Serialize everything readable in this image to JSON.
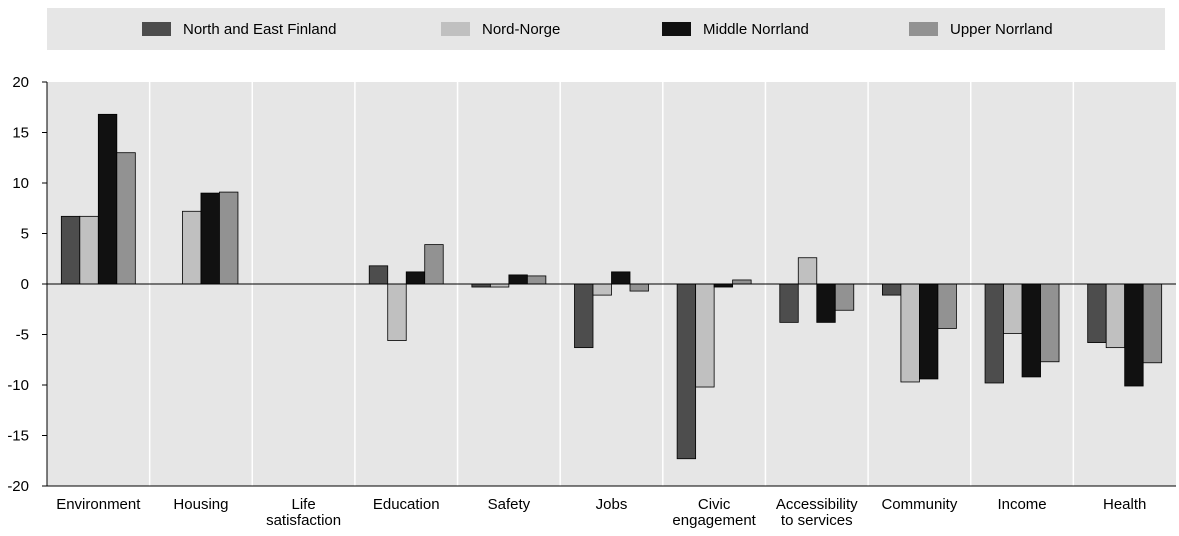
{
  "chart_data": {
    "type": "bar",
    "title": "",
    "xlabel": "",
    "ylabel": "",
    "ylim": [
      -20,
      20
    ],
    "yticks": [
      20,
      15,
      10,
      5,
      0,
      -5,
      -10,
      -15,
      -20
    ],
    "grid": true,
    "legend_position": "top",
    "categories": [
      [
        "Environment"
      ],
      [
        "Housing"
      ],
      [
        "Life",
        "satisfaction"
      ],
      [
        "Education"
      ],
      [
        "Safety"
      ],
      [
        "Jobs"
      ],
      [
        "Civic",
        "engagement"
      ],
      [
        "Accessibility",
        "to services"
      ],
      [
        "Community"
      ],
      [
        "Income"
      ],
      [
        "Health"
      ]
    ],
    "series": [
      {
        "name": "North and East Finland",
        "color": "#4d4d4d",
        "values": [
          6.7,
          null,
          null,
          1.8,
          -0.3,
          -6.3,
          -17.3,
          -3.8,
          -1.1,
          -9.8,
          -5.8
        ]
      },
      {
        "name": "Nord-Norge",
        "color": "#c0c0c0",
        "values": [
          6.7,
          7.2,
          null,
          -5.6,
          -0.3,
          -1.1,
          -10.2,
          2.6,
          -9.7,
          -4.9,
          -6.3
        ]
      },
      {
        "name": "Middle Norrland",
        "color": "#111111",
        "values": [
          16.8,
          9.0,
          null,
          1.2,
          0.9,
          1.2,
          -0.3,
          -3.8,
          -9.4,
          -9.2,
          -10.1
        ]
      },
      {
        "name": "Upper Norrland",
        "color": "#929292",
        "values": [
          13.0,
          9.1,
          null,
          3.9,
          0.8,
          -0.7,
          0.4,
          -2.6,
          -4.4,
          -7.7,
          -7.8
        ]
      }
    ]
  }
}
